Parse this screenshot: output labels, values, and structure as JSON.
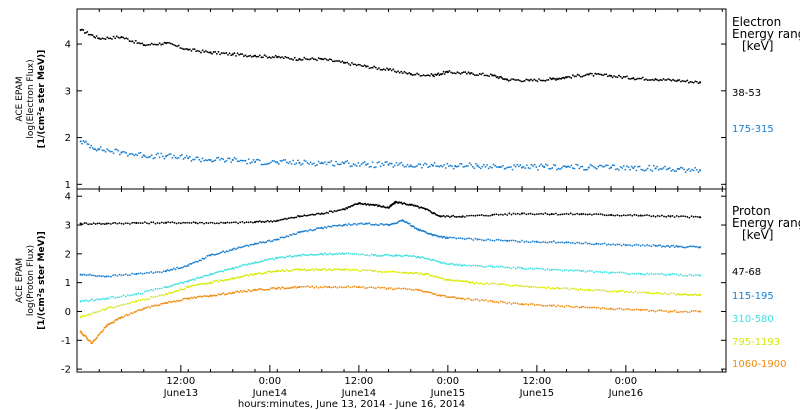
{
  "chart_data": [
    {
      "type": "scatter",
      "panel": "electron",
      "ylabel_lines": [
        "ACE EPAM",
        "log(Electron Flux)",
        "[1/(cm²s ster MeV)]"
      ],
      "ylim": [
        0.9,
        4.75
      ],
      "yticks": [
        1,
        2,
        3,
        4
      ],
      "ytick_labels": [
        "1",
        "2",
        "3",
        "4"
      ],
      "xlim": [
        0,
        87.5
      ],
      "grid": false,
      "legend_placement": "right",
      "legend_title": [
        "Electron",
        "Energy ranges"
      ],
      "legend_unit": "[keV]",
      "series": [
        {
          "name": "38-53",
          "color": "#000000",
          "points": [
            [
              0.5,
              4.3
            ],
            [
              3,
              4.12
            ],
            [
              6,
              4.15
            ],
            [
              9,
              3.98
            ],
            [
              12,
              4.02
            ],
            [
              15,
              3.88
            ],
            [
              18,
              3.82
            ],
            [
              21,
              3.78
            ],
            [
              24,
              3.75
            ],
            [
              27,
              3.72
            ],
            [
              30,
              3.68
            ],
            [
              33,
              3.68
            ],
            [
              36,
              3.6
            ],
            [
              39,
              3.52
            ],
            [
              42,
              3.45
            ],
            [
              45,
              3.36
            ],
            [
              48,
              3.33
            ],
            [
              50,
              3.4
            ],
            [
              53,
              3.37
            ],
            [
              56,
              3.33
            ],
            [
              58,
              3.24
            ],
            [
              61,
              3.22
            ],
            [
              64,
              3.25
            ],
            [
              66,
              3.29
            ],
            [
              69,
              3.35
            ],
            [
              72,
              3.32
            ],
            [
              75,
              3.27
            ],
            [
              78,
              3.25
            ],
            [
              81,
              3.22
            ],
            [
              84,
              3.18
            ]
          ]
        },
        {
          "name": "175-315",
          "color": "#1a7fd0",
          "points": [
            [
              0.5,
              1.92
            ],
            [
              3,
              1.75
            ],
            [
              6,
              1.68
            ],
            [
              9,
              1.62
            ],
            [
              12,
              1.6
            ],
            [
              15,
              1.56
            ],
            [
              18,
              1.52
            ],
            [
              21,
              1.52
            ],
            [
              24,
              1.48
            ],
            [
              27,
              1.47
            ],
            [
              30,
              1.46
            ],
            [
              33,
              1.46
            ],
            [
              36,
              1.45
            ],
            [
              39,
              1.42
            ],
            [
              42,
              1.42
            ],
            [
              45,
              1.4
            ],
            [
              48,
              1.4
            ],
            [
              51,
              1.39
            ],
            [
              54,
              1.4
            ],
            [
              57,
              1.37
            ],
            [
              60,
              1.36
            ],
            [
              63,
              1.37
            ],
            [
              66,
              1.37
            ],
            [
              69,
              1.36
            ],
            [
              72,
              1.36
            ],
            [
              75,
              1.35
            ],
            [
              78,
              1.34
            ],
            [
              81,
              1.33
            ],
            [
              84,
              1.3
            ]
          ]
        }
      ]
    },
    {
      "type": "scatter",
      "panel": "proton",
      "ylabel_lines": [
        "ACE EPAM",
        "log(Proton Flux)",
        "[1/(cm²s ster MeV)]"
      ],
      "ylim": [
        -2.1,
        4.25
      ],
      "yticks": [
        -2,
        -1,
        0,
        1,
        2,
        3,
        4
      ],
      "ytick_labels": [
        "-2",
        "-1",
        "0",
        "1",
        "2",
        "3",
        "4"
      ],
      "xlim": [
        0,
        87.5
      ],
      "xticks": [
        14,
        26,
        38,
        50,
        62,
        74,
        86
      ],
      "xtick_labels": [
        [
          "12:00",
          "June13"
        ],
        [
          "0:00",
          "June14"
        ],
        [
          "12:00",
          "June14"
        ],
        [
          "0:00",
          "June15"
        ],
        [
          "12:00",
          "June15"
        ],
        [
          "0:00",
          "June16"
        ]
      ],
      "xtick_label_positions": [
        14,
        26,
        38,
        50,
        62,
        74
      ],
      "xlabel": "hours:minutes, June 13, 2014 - June 16, 2014",
      "grid": false,
      "legend_placement": "right",
      "legend_title": [
        "Proton",
        "Energy ranges"
      ],
      "legend_unit": "[keV]",
      "series": [
        {
          "name": "47-68",
          "color": "#000000",
          "points": [
            [
              0.5,
              3.05
            ],
            [
              4,
              3.05
            ],
            [
              8,
              3.07
            ],
            [
              12,
              3.08
            ],
            [
              16,
              3.08
            ],
            [
              20,
              3.07
            ],
            [
              24,
              3.1
            ],
            [
              27,
              3.15
            ],
            [
              30,
              3.3
            ],
            [
              33,
              3.4
            ],
            [
              36,
              3.55
            ],
            [
              38,
              3.75
            ],
            [
              40,
              3.7
            ],
            [
              42,
              3.6
            ],
            [
              43,
              3.8
            ],
            [
              45,
              3.7
            ],
            [
              47,
              3.55
            ],
            [
              49,
              3.3
            ],
            [
              52,
              3.3
            ],
            [
              56,
              3.35
            ],
            [
              60,
              3.4
            ],
            [
              64,
              3.38
            ],
            [
              68,
              3.38
            ],
            [
              72,
              3.35
            ],
            [
              76,
              3.33
            ],
            [
              80,
              3.3
            ],
            [
              84,
              3.27
            ]
          ]
        },
        {
          "name": "115-195",
          "color": "#1a7fd0",
          "points": [
            [
              0.5,
              1.28
            ],
            [
              4,
              1.22
            ],
            [
              8,
              1.3
            ],
            [
              12,
              1.4
            ],
            [
              15,
              1.6
            ],
            [
              18,
              1.95
            ],
            [
              21,
              2.15
            ],
            [
              24,
              2.35
            ],
            [
              27,
              2.5
            ],
            [
              30,
              2.75
            ],
            [
              33,
              2.9
            ],
            [
              36,
              3.0
            ],
            [
              39,
              3.05
            ],
            [
              42,
              3.0
            ],
            [
              44,
              3.15
            ],
            [
              46,
              2.85
            ],
            [
              48,
              2.65
            ],
            [
              50,
              2.55
            ],
            [
              54,
              2.5
            ],
            [
              58,
              2.45
            ],
            [
              62,
              2.42
            ],
            [
              66,
              2.4
            ],
            [
              70,
              2.35
            ],
            [
              74,
              2.3
            ],
            [
              78,
              2.28
            ],
            [
              81,
              2.25
            ],
            [
              84,
              2.23
            ]
          ]
        },
        {
          "name": "310-580",
          "color": "#3fe0e0",
          "points": [
            [
              0.5,
              0.35
            ],
            [
              4,
              0.45
            ],
            [
              8,
              0.6
            ],
            [
              12,
              0.85
            ],
            [
              15,
              1.05
            ],
            [
              18,
              1.3
            ],
            [
              21,
              1.5
            ],
            [
              24,
              1.7
            ],
            [
              27,
              1.85
            ],
            [
              30,
              1.95
            ],
            [
              33,
              2.0
            ],
            [
              36,
              2.0
            ],
            [
              40,
              1.95
            ],
            [
              43,
              1.95
            ],
            [
              46,
              1.9
            ],
            [
              49,
              1.7
            ],
            [
              52,
              1.6
            ],
            [
              56,
              1.55
            ],
            [
              60,
              1.5
            ],
            [
              64,
              1.45
            ],
            [
              68,
              1.4
            ],
            [
              72,
              1.35
            ],
            [
              76,
              1.3
            ],
            [
              80,
              1.28
            ],
            [
              84,
              1.25
            ]
          ]
        },
        {
          "name": "795-1193",
          "color": "#d8e800",
          "points": [
            [
              0.5,
              -0.2
            ],
            [
              4,
              0.1
            ],
            [
              8,
              0.35
            ],
            [
              12,
              0.6
            ],
            [
              15,
              0.85
            ],
            [
              18,
              1.0
            ],
            [
              21,
              1.15
            ],
            [
              24,
              1.3
            ],
            [
              27,
              1.4
            ],
            [
              30,
              1.45
            ],
            [
              33,
              1.45
            ],
            [
              36,
              1.45
            ],
            [
              40,
              1.4
            ],
            [
              44,
              1.35
            ],
            [
              47,
              1.3
            ],
            [
              50,
              1.1
            ],
            [
              53,
              1.0
            ],
            [
              57,
              0.95
            ],
            [
              61,
              0.85
            ],
            [
              65,
              0.8
            ],
            [
              69,
              0.75
            ],
            [
              73,
              0.7
            ],
            [
              77,
              0.65
            ],
            [
              81,
              0.6
            ],
            [
              84,
              0.58
            ]
          ]
        },
        {
          "name": "1060-1900",
          "color": "#f08c10",
          "points": [
            [
              0.5,
              -0.7
            ],
            [
              2,
              -1.1
            ],
            [
              4,
              -0.5
            ],
            [
              6,
              -0.2
            ],
            [
              9,
              0.1
            ],
            [
              12,
              0.3
            ],
            [
              15,
              0.45
            ],
            [
              18,
              0.55
            ],
            [
              21,
              0.65
            ],
            [
              24,
              0.75
            ],
            [
              27,
              0.8
            ],
            [
              30,
              0.85
            ],
            [
              34,
              0.85
            ],
            [
              38,
              0.85
            ],
            [
              42,
              0.8
            ],
            [
              46,
              0.75
            ],
            [
              49,
              0.55
            ],
            [
              52,
              0.45
            ],
            [
              56,
              0.35
            ],
            [
              60,
              0.25
            ],
            [
              64,
              0.2
            ],
            [
              68,
              0.15
            ],
            [
              72,
              0.1
            ],
            [
              76,
              0.05
            ],
            [
              80,
              0.0
            ],
            [
              84,
              0.0
            ]
          ]
        }
      ]
    }
  ]
}
